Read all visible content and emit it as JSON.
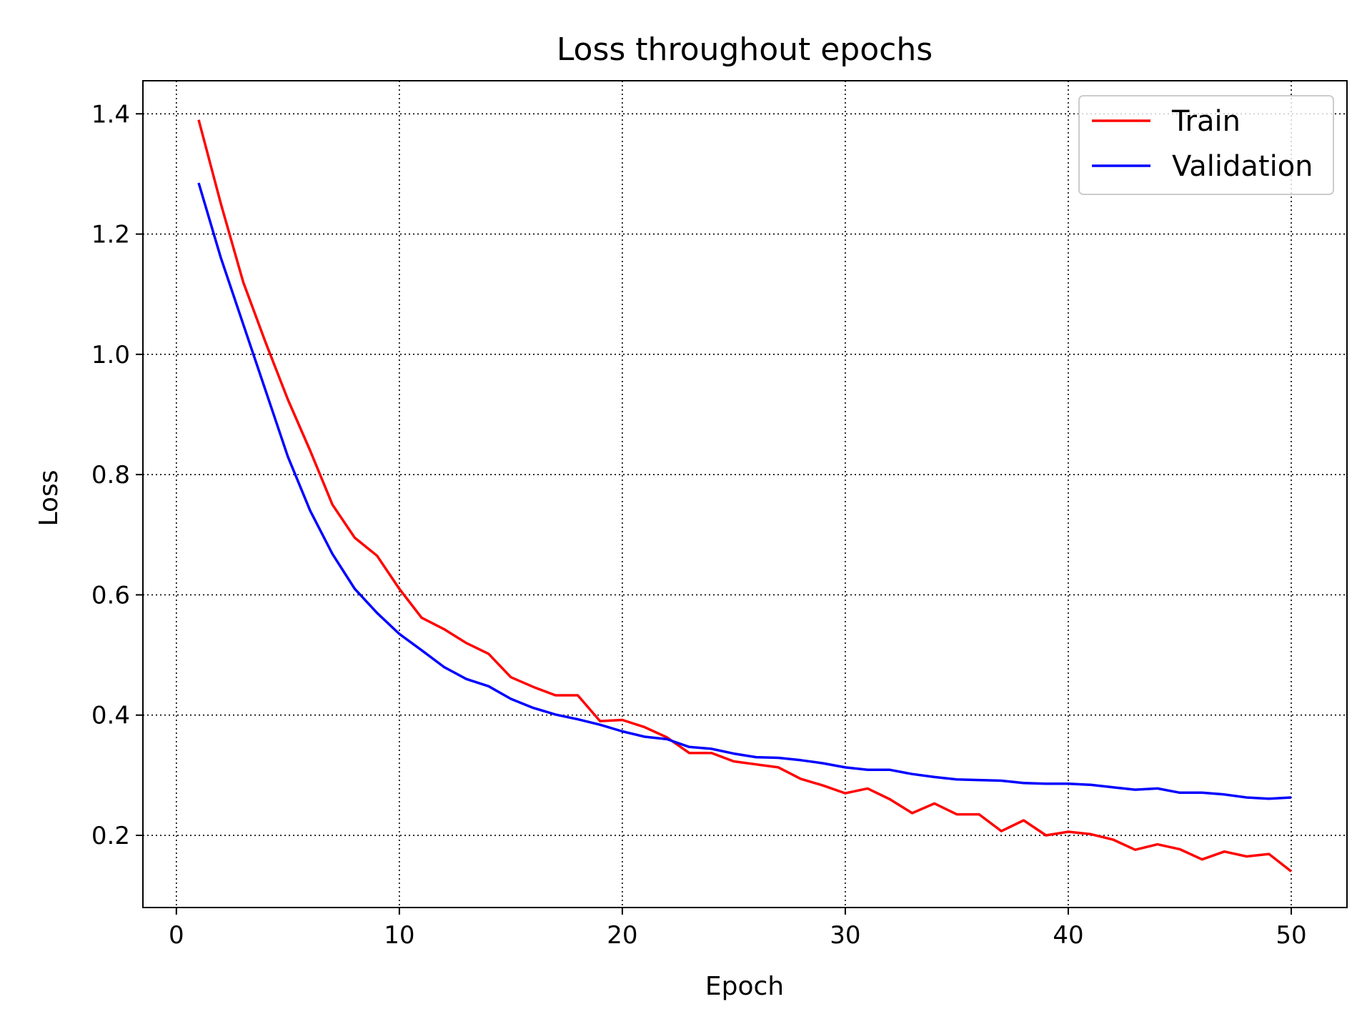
{
  "chart_data": {
    "type": "line",
    "title": "Loss throughout epochs",
    "xlabel": "Epoch",
    "ylabel": "Loss",
    "xlim": [
      -1.5,
      52.5
    ],
    "ylim": [
      0.08,
      1.455
    ],
    "xticks": [
      0,
      10,
      20,
      30,
      40,
      50
    ],
    "yticks": [
      0.2,
      0.4,
      0.6,
      0.8,
      1.0,
      1.2,
      1.4
    ],
    "grid": true,
    "legend_position": "top-right",
    "x": [
      1,
      2,
      3,
      4,
      5,
      6,
      7,
      8,
      9,
      10,
      11,
      12,
      13,
      14,
      15,
      16,
      17,
      18,
      19,
      20,
      21,
      22,
      23,
      24,
      25,
      26,
      27,
      28,
      29,
      30,
      31,
      32,
      33,
      34,
      35,
      36,
      37,
      38,
      39,
      40,
      41,
      42,
      43,
      44,
      45,
      46,
      47,
      48,
      49,
      50
    ],
    "series": [
      {
        "name": "Train",
        "color": "#ff0000",
        "values": [
          1.39,
          1.25,
          1.12,
          1.02,
          0.925,
          0.84,
          0.75,
          0.695,
          0.665,
          0.61,
          0.562,
          0.543,
          0.52,
          0.502,
          0.463,
          0.447,
          0.433,
          0.433,
          0.39,
          0.392,
          0.38,
          0.363,
          0.337,
          0.337,
          0.323,
          0.318,
          0.313,
          0.294,
          0.283,
          0.27,
          0.278,
          0.26,
          0.237,
          0.253,
          0.235,
          0.235,
          0.207,
          0.225,
          0.2,
          0.206,
          0.202,
          0.193,
          0.176,
          0.185,
          0.177,
          0.16,
          0.173,
          0.165,
          0.169,
          0.14
        ]
      },
      {
        "name": "Validation",
        "color": "#0000ff",
        "values": [
          1.285,
          1.16,
          1.05,
          0.94,
          0.83,
          0.74,
          0.668,
          0.61,
          0.57,
          0.535,
          0.508,
          0.48,
          0.46,
          0.448,
          0.427,
          0.412,
          0.401,
          0.393,
          0.384,
          0.373,
          0.364,
          0.36,
          0.347,
          0.344,
          0.336,
          0.33,
          0.329,
          0.325,
          0.32,
          0.313,
          0.309,
          0.309,
          0.302,
          0.297,
          0.293,
          0.292,
          0.291,
          0.287,
          0.286,
          0.286,
          0.284,
          0.28,
          0.276,
          0.278,
          0.271,
          0.271,
          0.268,
          0.263,
          0.261,
          0.263
        ]
      }
    ]
  }
}
